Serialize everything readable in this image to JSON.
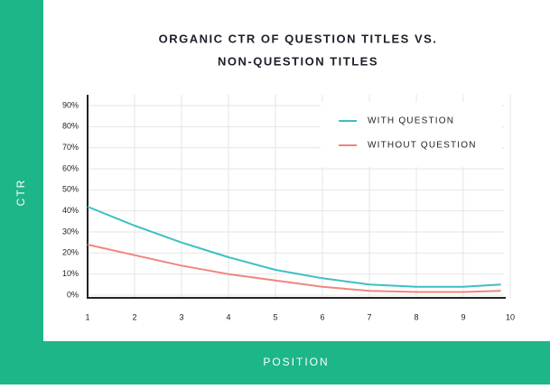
{
  "chart_data": {
    "type": "line",
    "title": [
      "ORGANIC CTR OF QUESTION TITLES VS.",
      "NON-QUESTION TITLES"
    ],
    "x_label": "POSITION",
    "y_label": "CTR",
    "xlim": [
      1,
      10
    ],
    "xticks": [
      1,
      2,
      3,
      4,
      5,
      6,
      7,
      8,
      9,
      10
    ],
    "ylim": [
      0,
      90
    ],
    "yticks": [
      {
        "value": 0,
        "label": "0%"
      },
      {
        "value": 10,
        "label": "10%"
      },
      {
        "value": 20,
        "label": "20%"
      },
      {
        "value": 30,
        "label": "30%"
      },
      {
        "value": 40,
        "label": "40%"
      },
      {
        "value": 50,
        "label": "50%"
      },
      {
        "value": 60,
        "label": "60%"
      },
      {
        "value": 70,
        "label": "70%"
      },
      {
        "value": 80,
        "label": "80%"
      },
      {
        "value": 90,
        "label": "90%"
      }
    ],
    "grid": true,
    "legend": "upper right",
    "series": [
      {
        "name": "WITH QUESTION",
        "color": "#3dbfc4",
        "x": [
          1,
          2,
          3,
          4,
          5,
          6,
          7,
          8,
          9,
          9.8
        ],
        "values": [
          42,
          33,
          25,
          18,
          12,
          8,
          5,
          4,
          4,
          5
        ]
      },
      {
        "name": "WITHOUT QUESTION",
        "color": "#f0857f",
        "x": [
          1,
          2,
          3,
          4,
          5,
          6,
          7,
          8,
          9,
          9.8
        ],
        "values": [
          24,
          19,
          14,
          10,
          7,
          4,
          2,
          1.5,
          1.5,
          2
        ]
      }
    ]
  }
}
